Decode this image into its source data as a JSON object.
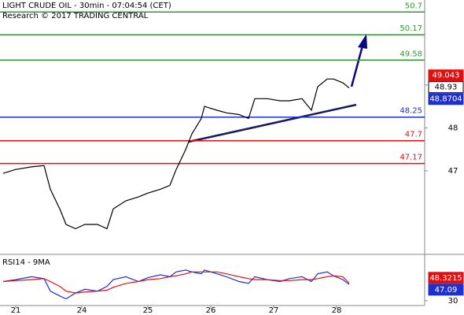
{
  "chart_data": [
    {
      "type": "line",
      "title": "LIGHT CRUDE OIL - 30min - 07:04:54 (CET)",
      "subtitle": "Research © 2017 TRADING CENTRAL",
      "x": [
        1,
        5,
        10,
        14,
        16,
        19,
        21,
        24,
        27,
        31,
        34,
        36,
        40,
        44,
        47,
        51,
        54,
        56,
        59,
        61,
        64,
        65,
        69,
        72,
        76,
        79,
        81,
        85,
        89,
        92,
        96,
        99,
        101,
        104,
        106,
        109,
        111
      ],
      "series": [
        {
          "name": "LIGHT CRUDE OIL",
          "color": "#000000",
          "values": [
            46.94,
            47.03,
            47.09,
            47.12,
            46.57,
            46.11,
            45.75,
            45.65,
            45.75,
            45.75,
            45.65,
            46.11,
            46.3,
            46.39,
            46.48,
            46.57,
            46.66,
            47.03,
            47.49,
            47.86,
            48.22,
            48.5,
            48.41,
            48.35,
            48.31,
            48.22,
            48.68,
            48.68,
            48.63,
            48.63,
            48.68,
            48.41,
            48.96,
            49.14,
            49.14,
            49.05,
            48.93
          ]
        }
      ],
      "levels": [
        {
          "value": 50.7,
          "color": "#2e9a2e"
        },
        {
          "value": 50.17,
          "color": "#2e9a2e"
        },
        {
          "value": 49.58,
          "color": "#2e9a2e"
        },
        {
          "value": 48.25,
          "color": "#1f2fd0"
        },
        {
          "value": 47.7,
          "color": "#e01010"
        },
        {
          "value": 47.17,
          "color": "#e01010"
        }
      ],
      "price_tags": [
        {
          "value": 49.043,
          "color": "#e01010"
        },
        {
          "value": 48.8704,
          "color": "#1f2fd0"
        }
      ],
      "xlim": [
        0,
        135
      ],
      "ylim": [
        45.07,
        50.98
      ],
      "yticks": [
        47,
        48,
        49
      ]
    },
    {
      "type": "line",
      "title": "RSI14 - 9MA",
      "x": [
        1,
        5,
        10,
        14,
        16,
        19,
        21,
        24,
        27,
        31,
        34,
        36,
        40,
        44,
        47,
        51,
        54,
        56,
        59,
        61,
        64,
        65,
        69,
        72,
        76,
        79,
        81,
        85,
        89,
        92,
        96,
        99,
        101,
        104,
        106,
        109,
        111
      ],
      "series": [
        {
          "name": "RSI14",
          "color": "#1f2fd0",
          "values": [
            50,
            52,
            55,
            53,
            40,
            35,
            32,
            38,
            42,
            40,
            45,
            52,
            55,
            50,
            54,
            57,
            55,
            60,
            62,
            60,
            58,
            62,
            58,
            55,
            50,
            48,
            55,
            52,
            50,
            53,
            55,
            50,
            58,
            60,
            56,
            52,
            47.09
          ]
        },
        {
          "name": "9MA",
          "color": "#e01010",
          "values": [
            50,
            51,
            52,
            53,
            50,
            45,
            40,
            38,
            39,
            40,
            41,
            44,
            48,
            50,
            52,
            53,
            55,
            56,
            58,
            60,
            60,
            60,
            60,
            58,
            55,
            53,
            52,
            52,
            51,
            51,
            52,
            52,
            53,
            55,
            56,
            55,
            48.3215
          ]
        }
      ],
      "xlim": [
        0,
        135
      ],
      "ylim": [
        25,
        75
      ],
      "yticks": [
        30
      ],
      "xticks": [
        {
          "value": 5,
          "label": "21"
        },
        {
          "value": 26,
          "label": "24"
        },
        {
          "value": 47,
          "label": "25"
        },
        {
          "value": 67,
          "label": "26"
        },
        {
          "value": 87,
          "label": "27"
        },
        {
          "value": 107,
          "label": "28"
        }
      ]
    }
  ]
}
